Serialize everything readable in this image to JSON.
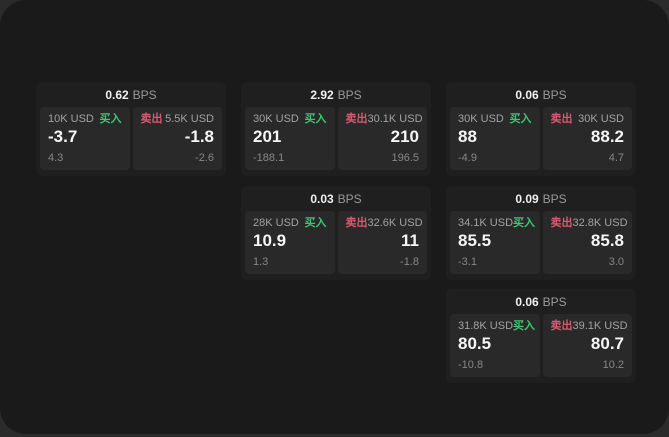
{
  "labels": {
    "bps_unit": "BPS",
    "buy": "买入",
    "sell": "卖出"
  },
  "colors": {
    "buy_green": "#3ec573",
    "sell_red": "#d75a70",
    "surface_bg": "#1a1a1a",
    "card_bg": "#1f1f1f",
    "panel_bg": "#292929"
  },
  "cards": [
    {
      "bps": "0.62",
      "buy": {
        "notional": "10K USD",
        "price": "-3.7",
        "delta": "4.3"
      },
      "sell": {
        "notional": "5.5K USD",
        "price": "-1.8",
        "delta": "-2.6"
      }
    },
    {
      "bps": "2.92",
      "buy": {
        "notional": "30K USD",
        "price": "201",
        "delta": "-188.1"
      },
      "sell": {
        "notional": "30.1K USD",
        "price": "210",
        "delta": "196.5"
      }
    },
    {
      "bps": "0.06",
      "buy": {
        "notional": "30K USD",
        "price": "88",
        "delta": "-4.9"
      },
      "sell": {
        "notional": "30K USD",
        "price": "88.2",
        "delta": "4.7"
      }
    },
    {
      "bps": "0.03",
      "buy": {
        "notional": "28K USD",
        "price": "10.9",
        "delta": "1.3"
      },
      "sell": {
        "notional": "32.6K USD",
        "price": "11",
        "delta": "-1.8"
      }
    },
    {
      "bps": "0.09",
      "buy": {
        "notional": "34.1K USD",
        "price": "85.5",
        "delta": "-3.1"
      },
      "sell": {
        "notional": "32.8K USD",
        "price": "85.8",
        "delta": "3.0"
      }
    },
    {
      "bps": "0.06",
      "buy": {
        "notional": "31.8K USD",
        "price": "80.5",
        "delta": "-10.8"
      },
      "sell": {
        "notional": "39.1K USD",
        "price": "80.7",
        "delta": "10.2"
      }
    }
  ]
}
